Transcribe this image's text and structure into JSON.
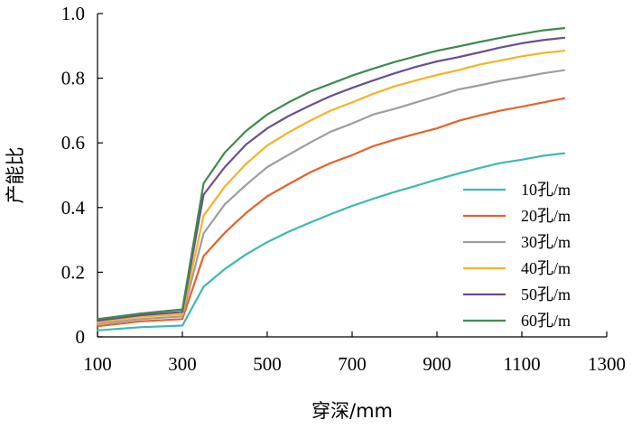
{
  "chart_data": {
    "type": "line",
    "xlabel": "穿深/mm",
    "ylabel": "产能比",
    "xlim": [
      100,
      1300
    ],
    "ylim": [
      0,
      1.0
    ],
    "xticks": [
      "100",
      "300",
      "500",
      "700",
      "900",
      "1100",
      "1300"
    ],
    "yticks": [
      "0",
      "0.2",
      "0.4",
      "0.6",
      "0.8",
      "1.0"
    ],
    "grid": false,
    "legend_position": "right",
    "x": [
      100,
      200,
      300,
      350,
      400,
      450,
      500,
      550,
      600,
      650,
      700,
      750,
      800,
      850,
      900,
      950,
      1000,
      1050,
      1100,
      1150,
      1200
    ],
    "series": [
      {
        "name": "10孔/m",
        "color": "#3fb8b0",
        "values": [
          0.02,
          0.03,
          0.035,
          0.155,
          0.21,
          0.255,
          0.293,
          0.325,
          0.353,
          0.38,
          0.405,
          0.427,
          0.448,
          0.467,
          0.487,
          0.505,
          0.522,
          0.538,
          0.548,
          0.56,
          0.568
        ]
      },
      {
        "name": "20孔/m",
        "color": "#e8602c",
        "values": [
          0.033,
          0.048,
          0.055,
          0.25,
          0.322,
          0.383,
          0.435,
          0.472,
          0.508,
          0.538,
          0.562,
          0.59,
          0.61,
          0.628,
          0.645,
          0.668,
          0.685,
          0.7,
          0.712,
          0.725,
          0.738
        ]
      },
      {
        "name": "30孔/m",
        "color": "#9e9e9e",
        "values": [
          0.04,
          0.055,
          0.063,
          0.32,
          0.41,
          0.47,
          0.525,
          0.563,
          0.6,
          0.635,
          0.66,
          0.688,
          0.705,
          0.725,
          0.745,
          0.765,
          0.778,
          0.792,
          0.803,
          0.815,
          0.825
        ]
      },
      {
        "name": "40孔/m",
        "color": "#f5b326",
        "values": [
          0.045,
          0.062,
          0.07,
          0.375,
          0.465,
          0.535,
          0.592,
          0.632,
          0.668,
          0.7,
          0.725,
          0.752,
          0.775,
          0.793,
          0.81,
          0.825,
          0.842,
          0.855,
          0.868,
          0.878,
          0.885
        ]
      },
      {
        "name": "50孔/m",
        "color": "#6a4f92",
        "values": [
          0.05,
          0.067,
          0.077,
          0.44,
          0.525,
          0.595,
          0.645,
          0.683,
          0.715,
          0.745,
          0.77,
          0.793,
          0.815,
          0.835,
          0.852,
          0.865,
          0.88,
          0.895,
          0.908,
          0.918,
          0.925
        ]
      },
      {
        "name": "60孔/m",
        "color": "#3e8a4e",
        "values": [
          0.055,
          0.072,
          0.085,
          0.475,
          0.57,
          0.637,
          0.688,
          0.725,
          0.758,
          0.783,
          0.808,
          0.83,
          0.85,
          0.868,
          0.885,
          0.898,
          0.912,
          0.925,
          0.937,
          0.948,
          0.955
        ]
      }
    ]
  }
}
